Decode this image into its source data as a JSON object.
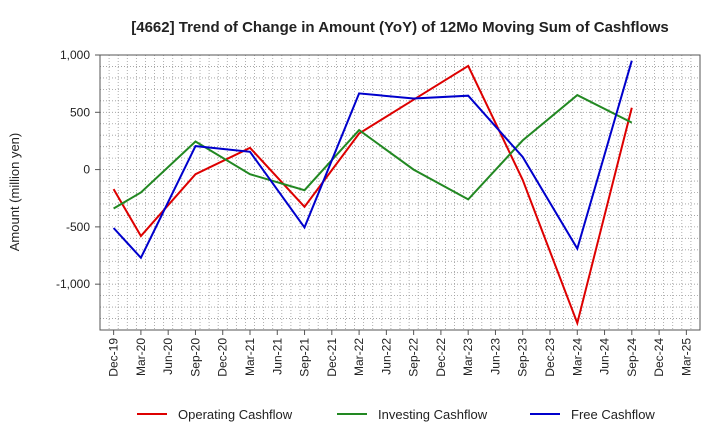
{
  "chart_data": {
    "type": "line",
    "title": "[4662]  Trend of Change in Amount (YoY) of 12Mo Moving Sum of Cashflows",
    "xlabel": "",
    "ylabel": "Amount (million yen)",
    "ylim": [
      -1400,
      1000
    ],
    "yticks": [
      1000,
      500,
      0,
      -500,
      -1000
    ],
    "ytick_labels": [
      "1,000",
      "500",
      "0",
      "-500",
      "-1,000"
    ],
    "grid": true,
    "legend_position": "bottom",
    "categories": [
      "Dec-19",
      "Mar-20",
      "Jun-20",
      "Sep-20",
      "Dec-20",
      "Mar-21",
      "Jun-21",
      "Sep-21",
      "Dec-21",
      "Mar-22",
      "Jun-22",
      "Sep-22",
      "Dec-22",
      "Mar-23",
      "Jun-23",
      "Sep-23",
      "Dec-23",
      "Mar-24",
      "Jun-24",
      "Sep-24",
      "Dec-24",
      "Mar-25"
    ],
    "series": [
      {
        "name": "Operating Cashflow",
        "color": "#dd0000",
        "values": [
          -170,
          -580,
          null,
          -40,
          null,
          190,
          null,
          -325,
          null,
          315,
          null,
          610,
          null,
          905,
          null,
          -90,
          null,
          -1340,
          null,
          540,
          null,
          null
        ]
      },
      {
        "name": "Investing Cashflow",
        "color": "#228822",
        "values": [
          -340,
          -200,
          null,
          245,
          null,
          -40,
          null,
          -180,
          null,
          345,
          null,
          0,
          null,
          -260,
          null,
          255,
          null,
          650,
          null,
          410,
          null,
          null
        ]
      },
      {
        "name": "Free Cashflow",
        "color": "#0000cc",
        "values": [
          -510,
          -770,
          null,
          205,
          null,
          155,
          null,
          -505,
          null,
          665,
          null,
          620,
          null,
          645,
          null,
          110,
          null,
          -690,
          null,
          950,
          null,
          null
        ]
      }
    ]
  }
}
